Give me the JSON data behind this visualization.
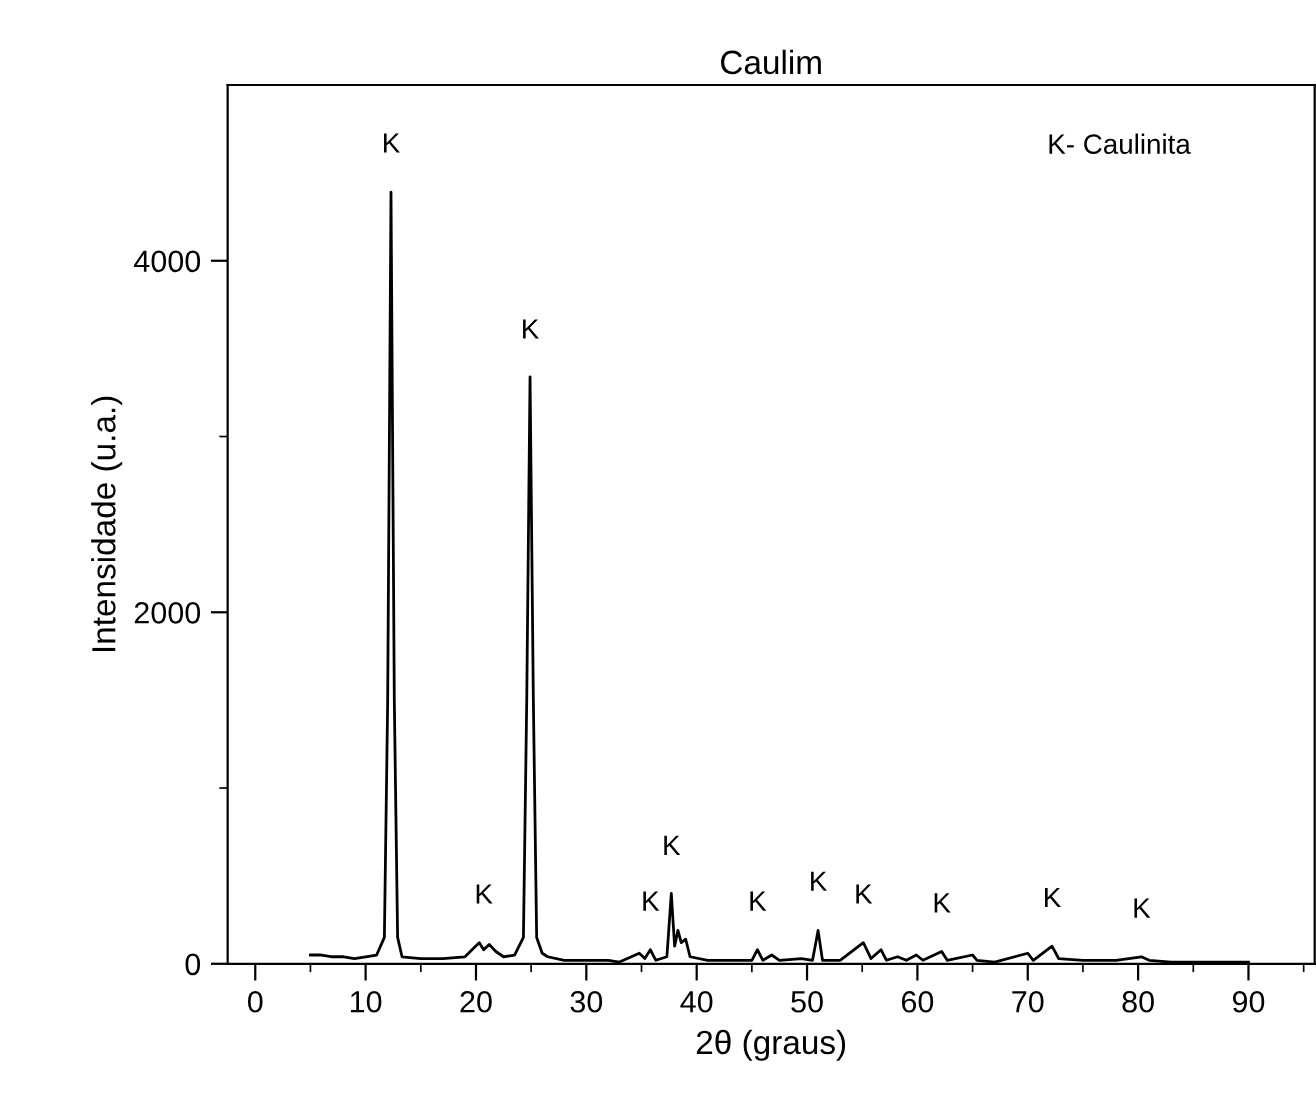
{
  "chart_data": {
    "type": "line",
    "title": "Caulim",
    "xlabel": "2θ (graus)",
    "ylabel": "Intensidade (u.a.)",
    "x": [
      5,
      6,
      7,
      8,
      9,
      10,
      11,
      11.7,
      12,
      12.3,
      12.6,
      12.9,
      13.3,
      15,
      17,
      19,
      19.8,
      20.3,
      20.7,
      21.2,
      21.8,
      22.5,
      23.5,
      24.3,
      24.6,
      24.9,
      25.2,
      25.5,
      26,
      26.5,
      28,
      30,
      32,
      33,
      34.8,
      35.3,
      35.8,
      36.3,
      37.3,
      37.7,
      38,
      38.3,
      38.6,
      39,
      39.4,
      41,
      43,
      45,
      45.5,
      46,
      46.8,
      47.5,
      49.5,
      50.5,
      51,
      51.4,
      53,
      55.1,
      55.8,
      56.7,
      57.2,
      58.2,
      59,
      59.9,
      60.5,
      62.2,
      62.7,
      65,
      65.4,
      67,
      70,
      70.5,
      72.2,
      72.8,
      75,
      78,
      80.3,
      81,
      83,
      86,
      90
    ],
    "series": [
      {
        "color": "#000000",
        "values": [
          50,
          50,
          40,
          40,
          30,
          40,
          50,
          150,
          1500,
          4390,
          1500,
          150,
          40,
          30,
          30,
          40,
          90,
          120,
          80,
          110,
          70,
          40,
          50,
          150,
          1500,
          3340,
          1500,
          150,
          60,
          40,
          20,
          20,
          20,
          10,
          60,
          30,
          80,
          20,
          40,
          400,
          100,
          190,
          120,
          140,
          40,
          20,
          20,
          20,
          80,
          20,
          50,
          20,
          30,
          20,
          190,
          20,
          20,
          120,
          30,
          80,
          20,
          40,
          20,
          50,
          20,
          70,
          20,
          50,
          20,
          10,
          60,
          20,
          100,
          30,
          20,
          20,
          40,
          20,
          10,
          10,
          10
        ]
      }
    ],
    "xlim": [
      -2.5,
      96
    ],
    "ylim": [
      0,
      5000
    ],
    "xticks": [
      0,
      {
        "value": 5,
        "label": null
      },
      10,
      {
        "value": 15,
        "label": null
      },
      20,
      {
        "value": 25,
        "label": null
      },
      30,
      {
        "value": 35,
        "label": null
      },
      40,
      {
        "value": 45,
        "label": null
      },
      50,
      {
        "value": 55,
        "label": null
      },
      60,
      {
        "value": 65,
        "label": null
      },
      70,
      {
        "value": 75,
        "label": null
      },
      80,
      {
        "value": 85,
        "label": null
      },
      90,
      {
        "value": 95,
        "label": null
      }
    ],
    "yticks": [
      0,
      {
        "value": 1000,
        "label": null
      },
      2000,
      {
        "value": 3000,
        "label": null
      },
      4000
    ],
    "annotations": [
      {
        "text": "K",
        "x": 12.3,
        "y": 4393
      },
      {
        "text": "K",
        "x": 24.9,
        "y": 3335
      },
      {
        "text": "K",
        "x": 20.7,
        "y": 120
      },
      {
        "text": "K",
        "x": 35.8,
        "y": 80
      },
      {
        "text": "K",
        "x": 37.7,
        "y": 397
      },
      {
        "text": "K",
        "x": 45.5,
        "y": 80
      },
      {
        "text": "K",
        "x": 51,
        "y": 193
      },
      {
        "text": "K",
        "x": 55.1,
        "y": 120
      },
      {
        "text": "K",
        "x": 62.2,
        "y": 70
      },
      {
        "text": "K",
        "x": 72.2,
        "y": 100
      },
      {
        "text": "K",
        "x": 80.3,
        "y": 40
      },
      "K- Caulinita"
    ],
    "grid": false,
    "marker": "none",
    "line_style": "solid"
  }
}
